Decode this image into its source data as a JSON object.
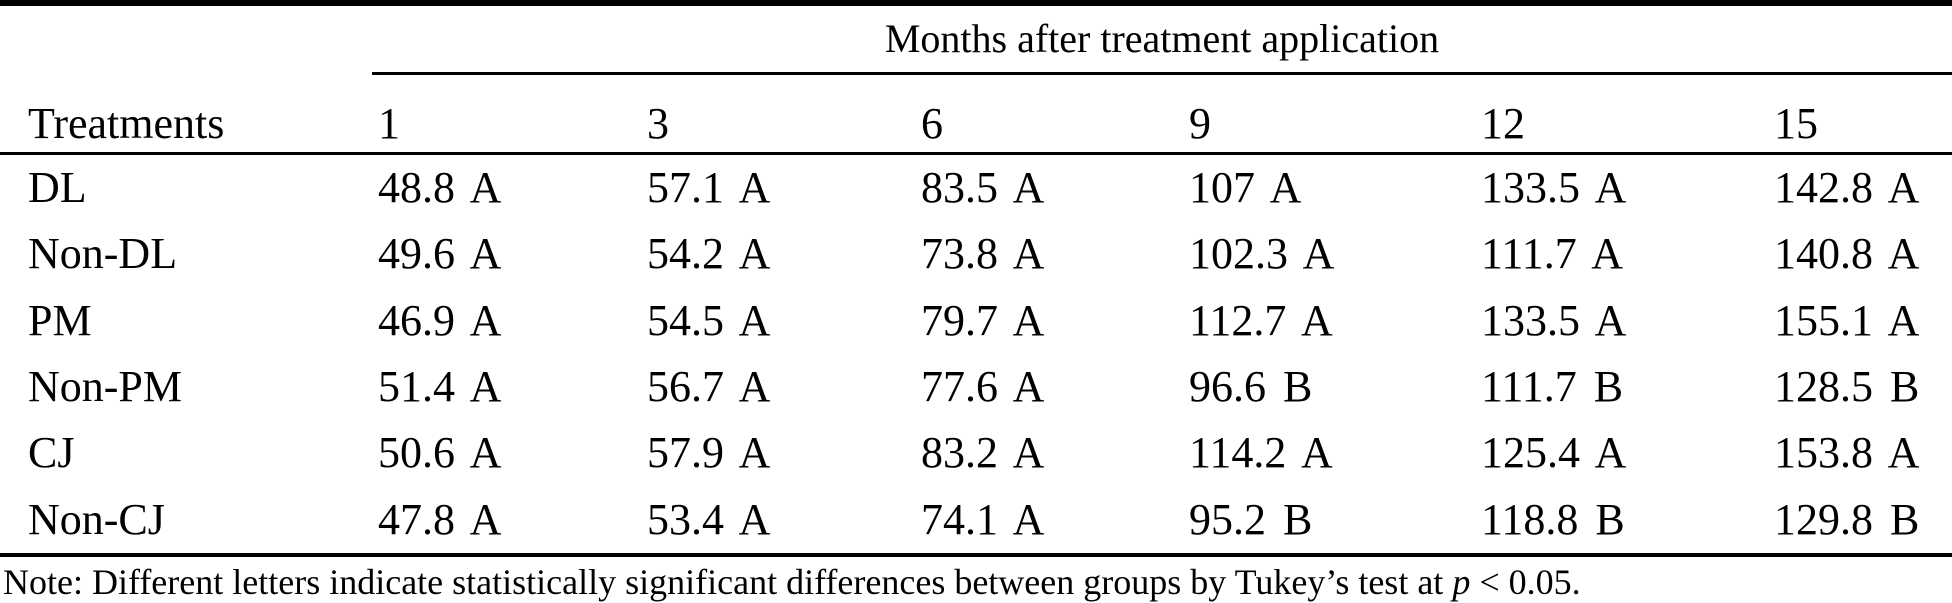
{
  "page": {
    "background_color": "#ffffff",
    "text_color": "#000000",
    "rule_color": "#000000"
  },
  "table": {
    "column_group_title": "Months after treatment application",
    "row_header": "Treatments",
    "month_columns": [
      "1",
      "3",
      "6",
      "9",
      "12",
      "15"
    ],
    "rows": [
      {
        "label": "DL",
        "cells": [
          "48.8 A",
          "57.1 A",
          "83.5 A",
          "107 A",
          "133.5 A",
          "142.8 A"
        ]
      },
      {
        "label": "Non-DL",
        "cells": [
          "49.6 A",
          "54.2 A",
          "73.8 A",
          "102.3 A",
          "111.7 A",
          "140.8 A"
        ]
      },
      {
        "label": "PM",
        "cells": [
          "46.9 A",
          "54.5 A",
          "79.7 A",
          "112.7 A",
          "133.5 A",
          "155.1 A"
        ]
      },
      {
        "label": "Non-PM",
        "cells": [
          "51.4 A",
          "56.7 A",
          "77.6 A",
          "96.6 B",
          "111.7 B",
          "128.5 B"
        ]
      },
      {
        "label": "CJ",
        "cells": [
          "50.6 A",
          "57.9 A",
          "83.2 A",
          "114.2 A",
          "125.4 A",
          "153.8 A"
        ]
      },
      {
        "label": "Non-CJ",
        "cells": [
          "47.8 A",
          "53.4 A",
          "74.1 A",
          "95.2 B",
          "118.8 B",
          "129.8 B"
        ]
      }
    ],
    "note": {
      "prefix": "Note: Different letters indicate statistically significant differences between groups by Tukey’s test at ",
      "italic_term": "p",
      "suffix": " < 0.05."
    }
  }
}
